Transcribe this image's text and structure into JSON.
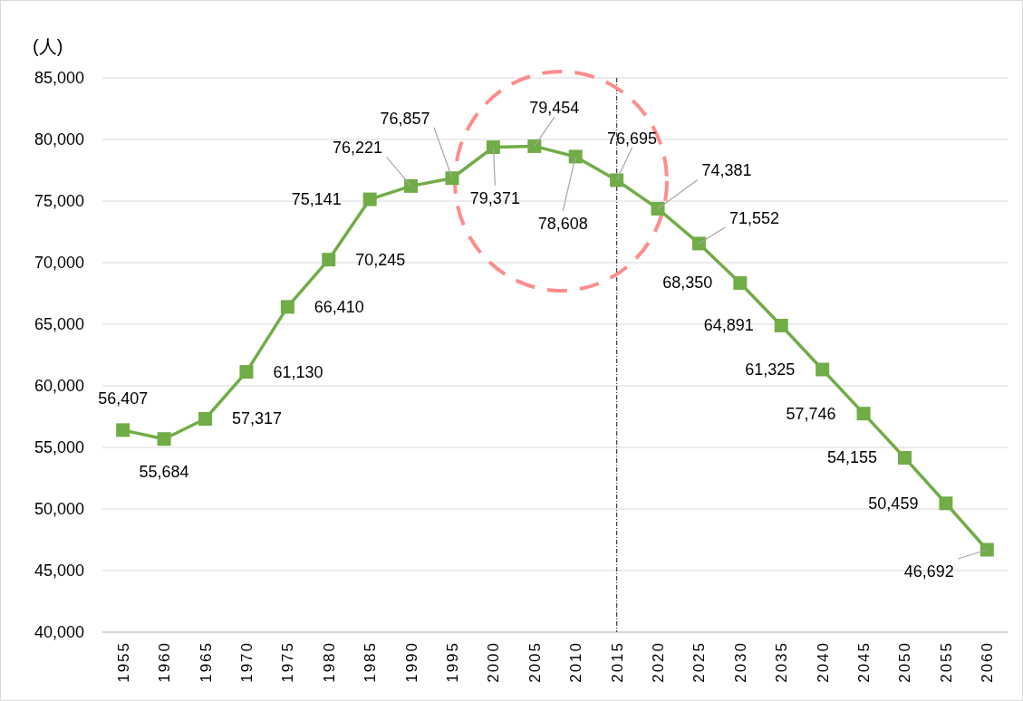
{
  "chart_data": {
    "type": "line",
    "ylabel": "(人)",
    "categories": [
      "1955",
      "1960",
      "1965",
      "1970",
      "1975",
      "1980",
      "1985",
      "1990",
      "1995",
      "2000",
      "2005",
      "2010",
      "2015",
      "2020",
      "2025",
      "2030",
      "2035",
      "2040",
      "2045",
      "2050",
      "2055",
      "2060"
    ],
    "series": [
      {
        "color": "#70ad47",
        "values": [
          56407,
          55684,
          57317,
          61130,
          66410,
          70245,
          75141,
          76221,
          76857,
          79371,
          79454,
          78608,
          76695,
          74381,
          71552,
          68350,
          64891,
          61325,
          57746,
          54155,
          50459,
          46692
        ],
        "value_labels": [
          "56,407",
          "55,684",
          "57,317",
          "61,130",
          "66,410",
          "70,245",
          "75,141",
          "76,221",
          "76,857",
          "79,371",
          "79,454",
          "78,608",
          "76,695",
          "74,381",
          "71,552",
          "68,350",
          "64,891",
          "61,325",
          "57,746",
          "54,155",
          "50,459",
          "46,692"
        ]
      }
    ],
    "ylim": [
      40000,
      85000
    ],
    "yticks": [
      {
        "value": 40000,
        "label": "40,000"
      },
      {
        "value": 45000,
        "label": "45,000"
      },
      {
        "value": 50000,
        "label": "50,000"
      },
      {
        "value": 55000,
        "label": "55,000"
      },
      {
        "value": 60000,
        "label": "60,000"
      },
      {
        "value": 65000,
        "label": "65,000"
      },
      {
        "value": 70000,
        "label": "70,000"
      },
      {
        "value": 75000,
        "label": "75,000"
      },
      {
        "value": 80000,
        "label": "80,000"
      },
      {
        "value": 85000,
        "label": "85,000"
      }
    ],
    "grid": "y",
    "marker": "square",
    "line_style": "solid",
    "ref_lines": [
      {
        "axis": "x",
        "value": "2015",
        "color": "#404040",
        "line_style": "dashed"
      }
    ]
  }
}
